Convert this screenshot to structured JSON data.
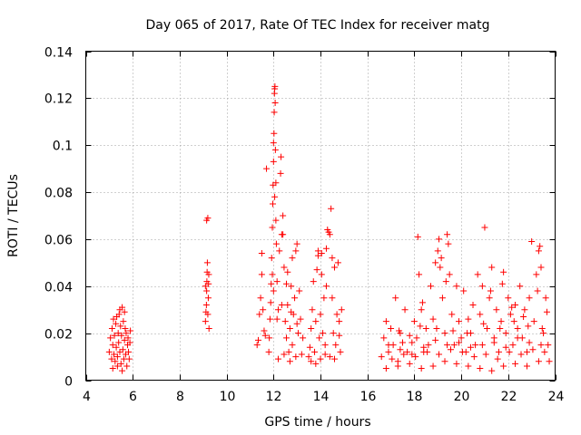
{
  "chart_data": {
    "type": "scatter",
    "title": "Day 065 of 2017, Rate Of TEC Index for receiver matg",
    "xlabel": "GPS time / hours",
    "ylabel": "ROTI / TECUs",
    "xlim": [
      4,
      24
    ],
    "ylim": [
      0,
      0.14
    ],
    "grid": true,
    "marker": "+",
    "color": "#ff0000",
    "x_ticks": [
      4,
      6,
      8,
      10,
      12,
      14,
      16,
      18,
      20,
      22,
      24
    ],
    "x_tick_labels": [
      "4",
      "6",
      "8",
      "10",
      "12",
      "14",
      "16",
      "18",
      "20",
      "22",
      "24"
    ],
    "y_ticks": [
      0,
      0.02,
      0.04,
      0.06,
      0.08,
      0.1,
      0.12,
      0.14
    ],
    "y_tick_labels": [
      "0",
      "0.02",
      "0.04",
      "0.06",
      "0.08",
      "0.1",
      "0.12",
      "0.14"
    ],
    "series": [
      {
        "name": "ROTI",
        "points": [
          [
            5.0,
            0.012
          ],
          [
            5.05,
            0.018
          ],
          [
            5.1,
            0.009
          ],
          [
            5.12,
            0.022
          ],
          [
            5.15,
            0.015
          ],
          [
            5.18,
            0.026
          ],
          [
            5.2,
            0.011
          ],
          [
            5.22,
            0.019
          ],
          [
            5.25,
            0.008
          ],
          [
            5.28,
            0.024
          ],
          [
            5.3,
            0.014
          ],
          [
            5.32,
            0.027
          ],
          [
            5.35,
            0.01
          ],
          [
            5.38,
            0.02
          ],
          [
            5.4,
            0.016
          ],
          [
            5.42,
            0.028
          ],
          [
            5.45,
            0.012
          ],
          [
            5.48,
            0.023
          ],
          [
            5.5,
            0.007
          ],
          [
            5.52,
            0.019
          ],
          [
            5.55,
            0.031
          ],
          [
            5.58,
            0.013
          ],
          [
            5.6,
            0.025
          ],
          [
            5.62,
            0.009
          ],
          [
            5.65,
            0.017
          ],
          [
            5.68,
            0.022
          ],
          [
            5.7,
            0.011
          ],
          [
            5.72,
            0.02
          ],
          [
            5.75,
            0.006
          ],
          [
            5.78,
            0.015
          ],
          [
            5.8,
            0.018
          ],
          [
            5.82,
            0.012
          ],
          [
            5.85,
            0.009
          ],
          [
            5.88,
            0.016
          ],
          [
            5.9,
            0.021
          ],
          [
            5.15,
            0.005
          ],
          [
            5.35,
            0.006
          ],
          [
            5.55,
            0.004
          ],
          [
            5.65,
            0.029
          ],
          [
            5.45,
            0.03
          ],
          [
            9.1,
            0.025
          ],
          [
            9.12,
            0.029
          ],
          [
            9.14,
            0.032
          ],
          [
            9.15,
            0.038
          ],
          [
            9.16,
            0.042
          ],
          [
            9.17,
            0.046
          ],
          [
            9.18,
            0.05
          ],
          [
            9.2,
            0.028
          ],
          [
            9.22,
            0.035
          ],
          [
            9.24,
            0.045
          ],
          [
            9.25,
            0.022
          ],
          [
            9.15,
            0.068
          ],
          [
            9.2,
            0.069
          ],
          [
            9.1,
            0.04
          ],
          [
            9.23,
            0.041
          ],
          [
            11.3,
            0.015
          ],
          [
            11.35,
            0.017
          ],
          [
            11.4,
            0.028
          ],
          [
            11.45,
            0.035
          ],
          [
            11.5,
            0.045
          ],
          [
            11.5,
            0.054
          ],
          [
            11.55,
            0.03
          ],
          [
            11.6,
            0.021
          ],
          [
            11.65,
            0.019
          ],
          [
            11.7,
            0.09
          ],
          [
            11.8,
            0.012
          ],
          [
            11.82,
            0.018
          ],
          [
            11.85,
            0.026
          ],
          [
            11.88,
            0.033
          ],
          [
            11.9,
            0.041
          ],
          [
            11.92,
            0.052
          ],
          [
            11.95,
            0.065
          ],
          [
            11.97,
            0.075
          ],
          [
            11.98,
            0.083
          ],
          [
            12.0,
            0.093
          ],
          [
            12.0,
            0.101
          ],
          [
            12.02,
            0.105
          ],
          [
            12.03,
            0.114
          ],
          [
            12.04,
            0.122
          ],
          [
            12.05,
            0.124
          ],
          [
            12.06,
            0.125
          ],
          [
            12.07,
            0.118
          ],
          [
            12.08,
            0.098
          ],
          [
            12.1,
            0.068
          ],
          [
            12.12,
            0.058
          ],
          [
            11.95,
            0.045
          ],
          [
            12.0,
            0.038
          ],
          [
            12.15,
            0.042
          ],
          [
            12.2,
            0.03
          ],
          [
            12.25,
            0.055
          ],
          [
            12.3,
            0.088
          ],
          [
            12.32,
            0.095
          ],
          [
            12.35,
            0.062
          ],
          [
            12.4,
            0.07
          ],
          [
            12.45,
            0.048
          ],
          [
            12.5,
            0.025
          ],
          [
            12.55,
            0.018
          ],
          [
            12.6,
            0.032
          ],
          [
            12.65,
            0.012
          ],
          [
            12.7,
            0.022
          ],
          [
            12.75,
            0.04
          ],
          [
            12.8,
            0.015
          ],
          [
            12.85,
            0.028
          ],
          [
            12.9,
            0.035
          ],
          [
            12.95,
            0.055
          ],
          [
            13.0,
            0.058
          ],
          [
            13.05,
            0.02
          ],
          [
            13.1,
            0.038
          ],
          [
            13.15,
            0.026
          ],
          [
            13.2,
            0.011
          ],
          [
            13.25,
            0.018
          ],
          [
            12.2,
            0.009
          ],
          [
            12.45,
            0.011
          ],
          [
            12.7,
            0.008
          ],
          [
            12.95,
            0.01
          ],
          [
            12.15,
            0.026
          ],
          [
            12.35,
            0.032
          ],
          [
            12.55,
            0.041
          ],
          [
            12.75,
            0.029
          ],
          [
            13.0,
            0.024
          ],
          [
            12.4,
            0.062
          ],
          [
            12.6,
            0.046
          ],
          [
            12.8,
            0.052
          ],
          [
            12.05,
            0.078
          ],
          [
            12.1,
            0.084
          ],
          [
            13.5,
            0.01
          ],
          [
            13.55,
            0.014
          ],
          [
            13.6,
            0.022
          ],
          [
            13.65,
            0.03
          ],
          [
            13.7,
            0.042
          ],
          [
            13.75,
            0.012
          ],
          [
            13.8,
            0.025
          ],
          [
            13.85,
            0.047
          ],
          [
            13.9,
            0.053
          ],
          [
            13.95,
            0.018
          ],
          [
            14.0,
            0.028
          ],
          [
            14.05,
            0.045
          ],
          [
            14.1,
            0.02
          ],
          [
            14.15,
            0.035
          ],
          [
            14.2,
            0.015
          ],
          [
            14.25,
            0.04
          ],
          [
            14.3,
            0.064
          ],
          [
            14.35,
            0.063
          ],
          [
            14.4,
            0.062
          ],
          [
            14.45,
            0.073
          ],
          [
            14.5,
            0.035
          ],
          [
            14.55,
            0.02
          ],
          [
            14.6,
            0.048
          ],
          [
            14.65,
            0.015
          ],
          [
            14.7,
            0.028
          ],
          [
            14.75,
            0.05
          ],
          [
            14.8,
            0.025
          ],
          [
            14.85,
            0.012
          ],
          [
            14.9,
            0.03
          ],
          [
            13.6,
            0.008
          ],
          [
            13.8,
            0.007
          ],
          [
            14.0,
            0.009
          ],
          [
            14.2,
            0.011
          ],
          [
            14.4,
            0.01
          ],
          [
            14.6,
            0.009
          ],
          [
            13.9,
            0.055
          ],
          [
            14.05,
            0.054
          ],
          [
            14.25,
            0.056
          ],
          [
            14.5,
            0.052
          ],
          [
            14.8,
            0.019
          ],
          [
            16.6,
            0.01
          ],
          [
            16.7,
            0.018
          ],
          [
            16.8,
            0.025
          ],
          [
            16.9,
            0.012
          ],
          [
            17.0,
            0.022
          ],
          [
            17.1,
            0.015
          ],
          [
            17.2,
            0.035
          ],
          [
            17.3,
            0.008
          ],
          [
            17.4,
            0.02
          ],
          [
            17.5,
            0.016
          ],
          [
            17.6,
            0.03
          ],
          [
            17.7,
            0.012
          ],
          [
            17.8,
            0.019
          ],
          [
            17.9,
            0.011
          ],
          [
            18.0,
            0.025
          ],
          [
            18.1,
            0.018
          ],
          [
            18.15,
            0.061
          ],
          [
            18.2,
            0.045
          ],
          [
            18.3,
            0.03
          ],
          [
            18.4,
            0.012
          ],
          [
            18.5,
            0.022
          ],
          [
            18.6,
            0.015
          ],
          [
            18.7,
            0.04
          ],
          [
            18.8,
            0.026
          ],
          [
            18.9,
            0.05
          ],
          [
            19.0,
            0.055
          ],
          [
            19.05,
            0.06
          ],
          [
            19.1,
            0.048
          ],
          [
            19.2,
            0.035
          ],
          [
            19.3,
            0.02
          ],
          [
            19.4,
            0.062
          ],
          [
            19.45,
            0.058
          ],
          [
            19.5,
            0.045
          ],
          [
            19.6,
            0.028
          ],
          [
            19.7,
            0.015
          ],
          [
            19.8,
            0.04
          ],
          [
            19.9,
            0.025
          ],
          [
            20.0,
            0.018
          ],
          [
            20.1,
            0.038
          ],
          [
            20.2,
            0.012
          ],
          [
            20.3,
            0.026
          ],
          [
            20.4,
            0.02
          ],
          [
            20.5,
            0.032
          ],
          [
            20.6,
            0.015
          ],
          [
            20.7,
            0.045
          ],
          [
            20.8,
            0.028
          ],
          [
            20.9,
            0.04
          ],
          [
            21.0,
            0.065
          ],
          [
            21.1,
            0.022
          ],
          [
            21.2,
            0.035
          ],
          [
            21.3,
            0.048
          ],
          [
            21.4,
            0.018
          ],
          [
            21.5,
            0.03
          ],
          [
            21.6,
            0.012
          ],
          [
            21.7,
            0.025
          ],
          [
            21.8,
            0.046
          ],
          [
            21.9,
            0.02
          ],
          [
            22.0,
            0.035
          ],
          [
            22.1,
            0.028
          ],
          [
            22.2,
            0.015
          ],
          [
            22.3,
            0.032
          ],
          [
            22.4,
            0.022
          ],
          [
            22.5,
            0.04
          ],
          [
            22.6,
            0.018
          ],
          [
            22.7,
            0.03
          ],
          [
            22.8,
            0.012
          ],
          [
            22.9,
            0.035
          ],
          [
            23.0,
            0.059
          ],
          [
            23.1,
            0.025
          ],
          [
            23.2,
            0.045
          ],
          [
            23.3,
            0.055
          ],
          [
            23.35,
            0.057
          ],
          [
            23.4,
            0.048
          ],
          [
            23.5,
            0.02
          ],
          [
            23.6,
            0.035
          ],
          [
            23.7,
            0.015
          ],
          [
            23.75,
            0.008
          ],
          [
            16.8,
            0.005
          ],
          [
            17.3,
            0.006
          ],
          [
            17.8,
            0.007
          ],
          [
            18.3,
            0.005
          ],
          [
            18.8,
            0.006
          ],
          [
            19.3,
            0.008
          ],
          [
            19.8,
            0.007
          ],
          [
            20.3,
            0.006
          ],
          [
            20.8,
            0.005
          ],
          [
            21.3,
            0.004
          ],
          [
            21.8,
            0.006
          ],
          [
            22.3,
            0.007
          ],
          [
            22.8,
            0.006
          ],
          [
            23.3,
            0.008
          ],
          [
            16.9,
            0.015
          ],
          [
            17.4,
            0.013
          ],
          [
            17.9,
            0.016
          ],
          [
            18.4,
            0.014
          ],
          [
            18.9,
            0.017
          ],
          [
            19.4,
            0.015
          ],
          [
            19.9,
            0.016
          ],
          [
            20.4,
            0.014
          ],
          [
            20.9,
            0.015
          ],
          [
            21.4,
            0.016
          ],
          [
            21.9,
            0.014
          ],
          [
            22.4,
            0.018
          ],
          [
            22.9,
            0.016
          ],
          [
            23.4,
            0.015
          ],
          [
            17.05,
            0.009
          ],
          [
            17.55,
            0.011
          ],
          [
            18.05,
            0.01
          ],
          [
            18.55,
            0.012
          ],
          [
            19.05,
            0.011
          ],
          [
            19.55,
            0.013
          ],
          [
            20.05,
            0.012
          ],
          [
            20.55,
            0.01
          ],
          [
            21.05,
            0.011
          ],
          [
            21.55,
            0.009
          ],
          [
            22.05,
            0.012
          ],
          [
            22.55,
            0.011
          ],
          [
            23.05,
            0.013
          ],
          [
            23.55,
            0.012
          ],
          [
            17.35,
            0.021
          ],
          [
            18.25,
            0.023
          ],
          [
            18.95,
            0.022
          ],
          [
            19.65,
            0.021
          ],
          [
            20.25,
            0.02
          ],
          [
            20.95,
            0.024
          ],
          [
            21.65,
            0.022
          ],
          [
            22.25,
            0.025
          ],
          [
            22.85,
            0.023
          ],
          [
            23.45,
            0.022
          ],
          [
            22.15,
            0.031
          ],
          [
            22.65,
            0.027
          ],
          [
            23.65,
            0.029
          ],
          [
            19.15,
            0.052
          ],
          [
            19.35,
            0.042
          ],
          [
            21.25,
            0.038
          ],
          [
            21.75,
            0.041
          ],
          [
            23.25,
            0.038
          ],
          [
            18.35,
            0.033
          ]
        ]
      }
    ]
  }
}
